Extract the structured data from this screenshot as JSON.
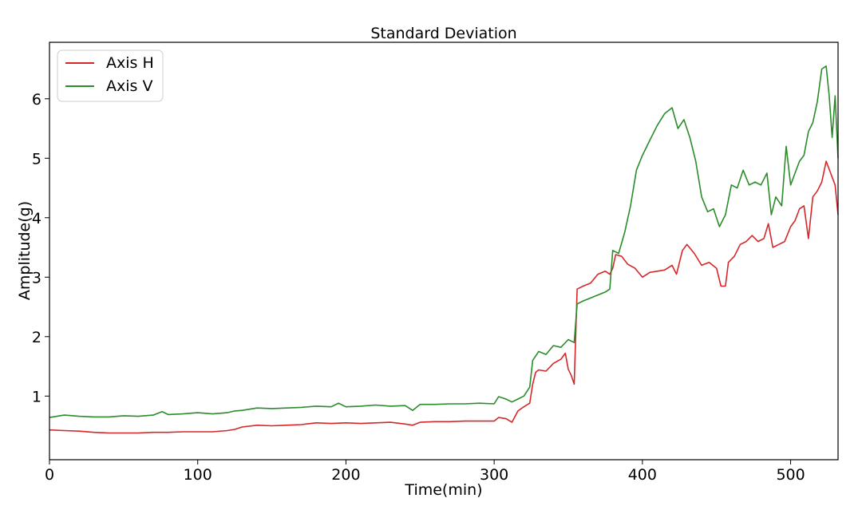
{
  "chart_data": {
    "type": "line",
    "title": "Standard Deviation",
    "xlabel": "Time(min)",
    "ylabel": "Amplitude(g)",
    "xlim": [
      0,
      532
    ],
    "ylim": [
      -0.07,
      6.95
    ],
    "xticks": [
      0,
      100,
      200,
      300,
      400,
      500
    ],
    "yticks": [
      1,
      2,
      3,
      4,
      5,
      6
    ],
    "grid": false,
    "legend_position": "top-left",
    "series": [
      {
        "name": "Axis H",
        "color": "#d62728",
        "points": [
          [
            0,
            0.43
          ],
          [
            10,
            0.42
          ],
          [
            20,
            0.41
          ],
          [
            30,
            0.39
          ],
          [
            40,
            0.38
          ],
          [
            50,
            0.38
          ],
          [
            60,
            0.38
          ],
          [
            70,
            0.39
          ],
          [
            80,
            0.39
          ],
          [
            90,
            0.4
          ],
          [
            100,
            0.4
          ],
          [
            110,
            0.4
          ],
          [
            120,
            0.42
          ],
          [
            125,
            0.44
          ],
          [
            130,
            0.48
          ],
          [
            140,
            0.51
          ],
          [
            150,
            0.5
          ],
          [
            160,
            0.51
          ],
          [
            170,
            0.52
          ],
          [
            180,
            0.55
          ],
          [
            190,
            0.54
          ],
          [
            200,
            0.55
          ],
          [
            210,
            0.54
          ],
          [
            220,
            0.55
          ],
          [
            230,
            0.56
          ],
          [
            240,
            0.53
          ],
          [
            245,
            0.51
          ],
          [
            250,
            0.56
          ],
          [
            260,
            0.57
          ],
          [
            270,
            0.57
          ],
          [
            280,
            0.58
          ],
          [
            290,
            0.58
          ],
          [
            300,
            0.58
          ],
          [
            303,
            0.64
          ],
          [
            308,
            0.62
          ],
          [
            312,
            0.56
          ],
          [
            316,
            0.75
          ],
          [
            320,
            0.82
          ],
          [
            324,
            0.88
          ],
          [
            326,
            1.2
          ],
          [
            328,
            1.4
          ],
          [
            330,
            1.44
          ],
          [
            335,
            1.42
          ],
          [
            340,
            1.55
          ],
          [
            345,
            1.62
          ],
          [
            348,
            1.72
          ],
          [
            350,
            1.45
          ],
          [
            352,
            1.35
          ],
          [
            354,
            1.2
          ],
          [
            356,
            2.8
          ],
          [
            360,
            2.85
          ],
          [
            365,
            2.9
          ],
          [
            370,
            3.05
          ],
          [
            375,
            3.1
          ],
          [
            378,
            3.05
          ],
          [
            380,
            3.15
          ],
          [
            382,
            3.38
          ],
          [
            386,
            3.35
          ],
          [
            390,
            3.22
          ],
          [
            395,
            3.15
          ],
          [
            400,
            3.0
          ],
          [
            405,
            3.08
          ],
          [
            410,
            3.1
          ],
          [
            415,
            3.12
          ],
          [
            420,
            3.2
          ],
          [
            423,
            3.05
          ],
          [
            427,
            3.45
          ],
          [
            430,
            3.55
          ],
          [
            435,
            3.4
          ],
          [
            440,
            3.2
          ],
          [
            445,
            3.25
          ],
          [
            450,
            3.15
          ],
          [
            453,
            2.85
          ],
          [
            456,
            2.85
          ],
          [
            458,
            3.25
          ],
          [
            462,
            3.35
          ],
          [
            466,
            3.55
          ],
          [
            470,
            3.6
          ],
          [
            474,
            3.7
          ],
          [
            478,
            3.6
          ],
          [
            482,
            3.65
          ],
          [
            485,
            3.9
          ],
          [
            488,
            3.5
          ],
          [
            492,
            3.55
          ],
          [
            496,
            3.6
          ],
          [
            500,
            3.85
          ],
          [
            503,
            3.95
          ],
          [
            506,
            4.15
          ],
          [
            509,
            4.2
          ],
          [
            512,
            3.65
          ],
          [
            515,
            4.35
          ],
          [
            518,
            4.45
          ],
          [
            521,
            4.6
          ],
          [
            524,
            4.95
          ],
          [
            527,
            4.75
          ],
          [
            530,
            4.55
          ],
          [
            532,
            4.05
          ]
        ]
      },
      {
        "name": "Axis V",
        "color": "#2a8c2a",
        "points": [
          [
            0,
            0.64
          ],
          [
            10,
            0.68
          ],
          [
            20,
            0.66
          ],
          [
            30,
            0.65
          ],
          [
            40,
            0.65
          ],
          [
            50,
            0.67
          ],
          [
            60,
            0.66
          ],
          [
            70,
            0.68
          ],
          [
            76,
            0.74
          ],
          [
            80,
            0.69
          ],
          [
            90,
            0.7
          ],
          [
            100,
            0.72
          ],
          [
            110,
            0.7
          ],
          [
            120,
            0.72
          ],
          [
            125,
            0.75
          ],
          [
            130,
            0.76
          ],
          [
            140,
            0.8
          ],
          [
            150,
            0.79
          ],
          [
            160,
            0.8
          ],
          [
            170,
            0.81
          ],
          [
            180,
            0.83
          ],
          [
            190,
            0.82
          ],
          [
            195,
            0.88
          ],
          [
            200,
            0.82
          ],
          [
            210,
            0.83
          ],
          [
            220,
            0.85
          ],
          [
            230,
            0.83
          ],
          [
            240,
            0.84
          ],
          [
            245,
            0.76
          ],
          [
            250,
            0.86
          ],
          [
            260,
            0.86
          ],
          [
            270,
            0.87
          ],
          [
            280,
            0.87
          ],
          [
            290,
            0.88
          ],
          [
            300,
            0.87
          ],
          [
            303,
            0.99
          ],
          [
            308,
            0.95
          ],
          [
            312,
            0.9
          ],
          [
            316,
            0.95
          ],
          [
            320,
            1.0
          ],
          [
            324,
            1.15
          ],
          [
            326,
            1.6
          ],
          [
            330,
            1.75
          ],
          [
            335,
            1.7
          ],
          [
            340,
            1.85
          ],
          [
            345,
            1.82
          ],
          [
            350,
            1.95
          ],
          [
            354,
            1.9
          ],
          [
            356,
            2.55
          ],
          [
            360,
            2.6
          ],
          [
            365,
            2.65
          ],
          [
            370,
            2.7
          ],
          [
            375,
            2.75
          ],
          [
            378,
            2.8
          ],
          [
            380,
            3.45
          ],
          [
            384,
            3.4
          ],
          [
            388,
            3.75
          ],
          [
            392,
            4.2
          ],
          [
            396,
            4.8
          ],
          [
            400,
            5.05
          ],
          [
            405,
            5.3
          ],
          [
            410,
            5.55
          ],
          [
            415,
            5.75
          ],
          [
            420,
            5.85
          ],
          [
            424,
            5.5
          ],
          [
            428,
            5.65
          ],
          [
            432,
            5.35
          ],
          [
            436,
            4.95
          ],
          [
            440,
            4.35
          ],
          [
            444,
            4.1
          ],
          [
            448,
            4.15
          ],
          [
            452,
            3.85
          ],
          [
            456,
            4.05
          ],
          [
            460,
            4.55
          ],
          [
            464,
            4.5
          ],
          [
            468,
            4.8
          ],
          [
            472,
            4.55
          ],
          [
            476,
            4.6
          ],
          [
            480,
            4.55
          ],
          [
            484,
            4.75
          ],
          [
            487,
            4.05
          ],
          [
            490,
            4.35
          ],
          [
            494,
            4.2
          ],
          [
            497,
            5.2
          ],
          [
            500,
            4.55
          ],
          [
            503,
            4.75
          ],
          [
            506,
            4.95
          ],
          [
            509,
            5.05
          ],
          [
            512,
            5.45
          ],
          [
            515,
            5.6
          ],
          [
            518,
            5.95
          ],
          [
            521,
            6.5
          ],
          [
            524,
            6.55
          ],
          [
            526,
            6.05
          ],
          [
            528,
            5.35
          ],
          [
            530,
            6.05
          ],
          [
            532,
            5.0
          ]
        ]
      }
    ]
  }
}
